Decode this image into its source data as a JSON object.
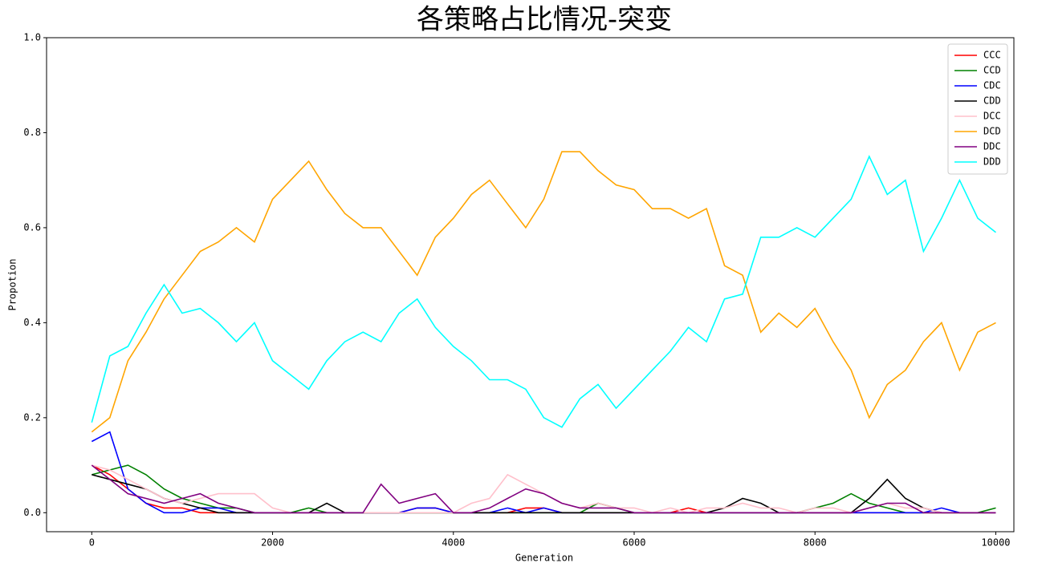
{
  "chart_data": {
    "type": "line",
    "title": "各策略占比情况-突变",
    "xlabel": "Generation",
    "ylabel": "Propotion",
    "x": [
      0,
      200,
      400,
      600,
      800,
      1000,
      1200,
      1400,
      1600,
      1800,
      2000,
      2200,
      2400,
      2600,
      2800,
      3000,
      3200,
      3400,
      3600,
      3800,
      4000,
      4200,
      4400,
      4600,
      4800,
      5000,
      5200,
      5400,
      5600,
      5800,
      6000,
      6200,
      6400,
      6600,
      6800,
      7000,
      7200,
      7400,
      7600,
      7800,
      8000,
      8200,
      8400,
      8600,
      8800,
      9000,
      9200,
      9400,
      9600,
      9800,
      10000
    ],
    "series": [
      {
        "name": "CCC",
        "color": "red",
        "values": [
          0.1,
          0.08,
          0.05,
          0.02,
          0.01,
          0.01,
          0,
          0,
          0,
          0,
          0,
          0,
          0,
          0,
          0,
          0,
          0,
          0,
          0.01,
          0.01,
          0,
          0,
          0,
          0,
          0.01,
          0.01,
          0,
          0,
          0,
          0,
          0,
          0,
          0,
          0.01,
          0,
          0,
          0,
          0,
          0,
          0,
          0,
          0,
          0,
          0,
          0,
          0,
          0,
          0,
          0,
          0,
          0
        ]
      },
      {
        "name": "CCD",
        "color": "green",
        "values": [
          0.08,
          0.09,
          0.1,
          0.08,
          0.05,
          0.03,
          0.02,
          0.01,
          0.01,
          0,
          0,
          0,
          0.01,
          0,
          0,
          0,
          0,
          0,
          0,
          0,
          0,
          0,
          0,
          0,
          0,
          0,
          0,
          0,
          0.02,
          0.01,
          0,
          0,
          0,
          0,
          0,
          0,
          0,
          0,
          0,
          0,
          0.01,
          0.02,
          0.04,
          0.02,
          0.01,
          0,
          0,
          0,
          0,
          0,
          0.01
        ]
      },
      {
        "name": "CDC",
        "color": "blue",
        "values": [
          0.15,
          0.17,
          0.05,
          0.02,
          0,
          0,
          0.01,
          0.01,
          0,
          0,
          0,
          0,
          0,
          0,
          0,
          0,
          0,
          0,
          0.01,
          0.01,
          0,
          0,
          0,
          0.01,
          0,
          0.01,
          0,
          0,
          0,
          0,
          0,
          0,
          0,
          0,
          0,
          0,
          0,
          0,
          0,
          0,
          0,
          0,
          0,
          0,
          0,
          0,
          0,
          0.01,
          0,
          0,
          0
        ]
      },
      {
        "name": "CDD",
        "color": "black",
        "values": [
          0.08,
          0.07,
          0.06,
          0.05,
          0.03,
          0.02,
          0.01,
          0,
          0,
          0,
          0,
          0,
          0,
          0.02,
          0,
          0,
          0,
          0,
          0,
          0,
          0,
          0,
          0,
          0,
          0,
          0,
          0,
          0,
          0,
          0,
          0,
          0,
          0,
          0,
          0,
          0.01,
          0.03,
          0.02,
          0,
          0,
          0,
          0,
          0,
          0.03,
          0.07,
          0.03,
          0.01,
          0,
          0,
          0,
          0
        ]
      },
      {
        "name": "DCC",
        "color": "pink",
        "values": [
          0.1,
          0.09,
          0.07,
          0.05,
          0.03,
          0.02,
          0.03,
          0.04,
          0.04,
          0.04,
          0.01,
          0,
          0,
          0,
          0,
          0,
          0,
          0,
          0,
          0,
          0,
          0.02,
          0.03,
          0.08,
          0.06,
          0.04,
          0.02,
          0.01,
          0.02,
          0.01,
          0.01,
          0,
          0.01,
          0,
          0.01,
          0.01,
          0.02,
          0.01,
          0.01,
          0,
          0.01,
          0.01,
          0,
          0.01,
          0.02,
          0.01,
          0.01,
          0,
          0,
          0,
          0
        ]
      },
      {
        "name": "DCD",
        "color": "orange",
        "values": [
          0.17,
          0.2,
          0.32,
          0.38,
          0.45,
          0.5,
          0.55,
          0.57,
          0.6,
          0.57,
          0.66,
          0.7,
          0.74,
          0.68,
          0.63,
          0.6,
          0.6,
          0.55,
          0.5,
          0.58,
          0.62,
          0.67,
          0.7,
          0.65,
          0.6,
          0.66,
          0.76,
          0.76,
          0.72,
          0.69,
          0.68,
          0.64,
          0.64,
          0.62,
          0.64,
          0.52,
          0.5,
          0.38,
          0.42,
          0.39,
          0.43,
          0.36,
          0.3,
          0.2,
          0.27,
          0.3,
          0.36,
          0.4,
          0.3,
          0.38,
          0.4
        ]
      },
      {
        "name": "DDC",
        "color": "purple",
        "values": [
          0.1,
          0.07,
          0.04,
          0.03,
          0.02,
          0.03,
          0.04,
          0.02,
          0.01,
          0,
          0,
          0,
          0,
          0,
          0,
          0,
          0.06,
          0.02,
          0.03,
          0.04,
          0,
          0,
          0.01,
          0.03,
          0.05,
          0.04,
          0.02,
          0.01,
          0.01,
          0.01,
          0,
          0,
          0,
          0,
          0,
          0,
          0,
          0,
          0,
          0,
          0,
          0,
          0,
          0.01,
          0.02,
          0.02,
          0,
          0,
          0,
          0,
          0
        ]
      },
      {
        "name": "DDD",
        "color": "cyan",
        "values": [
          0.19,
          0.33,
          0.35,
          0.42,
          0.48,
          0.42,
          0.43,
          0.4,
          0.36,
          0.4,
          0.32,
          0.29,
          0.26,
          0.32,
          0.36,
          0.38,
          0.36,
          0.42,
          0.45,
          0.39,
          0.35,
          0.32,
          0.28,
          0.28,
          0.26,
          0.2,
          0.18,
          0.24,
          0.27,
          0.22,
          0.26,
          0.3,
          0.34,
          0.39,
          0.36,
          0.45,
          0.46,
          0.58,
          0.58,
          0.6,
          0.58,
          0.62,
          0.66,
          0.75,
          0.67,
          0.7,
          0.55,
          0.62,
          0.7,
          0.62,
          0.59
        ]
      }
    ],
    "xlim": [
      -500,
      10200
    ],
    "ylim": [
      -0.04,
      1.0
    ],
    "xticks": [
      0,
      2000,
      4000,
      6000,
      8000,
      10000
    ],
    "yticks": [
      {
        "value": 0,
        "label": "0.0"
      },
      0.2,
      0.4,
      0.6,
      0.8,
      {
        "value": 1,
        "label": "1.0"
      }
    ],
    "legend": "upper right"
  }
}
